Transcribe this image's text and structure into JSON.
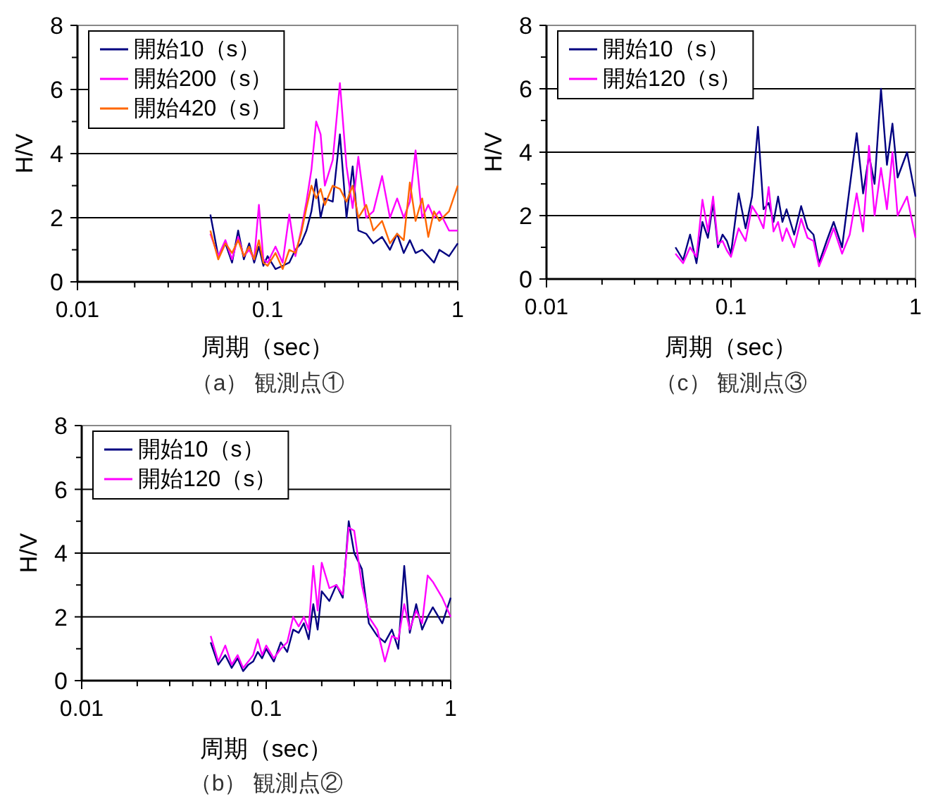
{
  "chart_data": [
    {
      "type": "line",
      "xlabel": "周期（sec）",
      "ylabel": "H/V",
      "annotations": [
        "（a） 観測点①"
      ],
      "log": "x",
      "xlim": [
        0.01,
        1
      ],
      "xticks": [
        0.01,
        0.1,
        1
      ],
      "ylim": [
        0,
        8
      ],
      "yticks": [
        0,
        2,
        4,
        6,
        8
      ],
      "grid": "y",
      "legend": "top left",
      "x": [
        0.05,
        0.055,
        0.06,
        0.065,
        0.07,
        0.075,
        0.08,
        0.085,
        0.09,
        0.095,
        0.1,
        0.11,
        0.12,
        0.13,
        0.14,
        0.15,
        0.16,
        0.17,
        0.18,
        0.19,
        0.2,
        0.22,
        0.24,
        0.26,
        0.28,
        0.3,
        0.33,
        0.36,
        0.4,
        0.44,
        0.48,
        0.52,
        0.56,
        0.6,
        0.65,
        0.7,
        0.75,
        0.8,
        0.9,
        1.0
      ],
      "series": [
        {
          "name": "開始10（s）",
          "color": "#000080",
          "values": [
            2.1,
            0.8,
            1.2,
            0.6,
            1.6,
            0.7,
            1.2,
            0.6,
            1.1,
            0.5,
            0.8,
            0.4,
            0.5,
            0.6,
            1.0,
            1.2,
            1.6,
            2.2,
            3.2,
            2.0,
            2.6,
            2.5,
            4.6,
            2.0,
            3.6,
            1.6,
            1.5,
            1.2,
            1.4,
            1.0,
            1.5,
            0.9,
            1.3,
            0.9,
            1.0,
            0.8,
            0.6,
            1.0,
            0.8,
            1.2
          ]
        },
        {
          "name": "開始200（s）",
          "color": "#ff00ff",
          "values": [
            1.5,
            0.8,
            1.3,
            0.7,
            1.4,
            0.8,
            1.0,
            0.7,
            2.4,
            0.7,
            0.6,
            1.1,
            0.6,
            2.1,
            0.8,
            1.6,
            2.5,
            3.5,
            5.0,
            4.6,
            3.0,
            3.8,
            6.2,
            3.6,
            2.3,
            3.9,
            2.0,
            2.2,
            3.3,
            2.0,
            2.6,
            2.0,
            2.5,
            4.1,
            2.0,
            2.4,
            2.0,
            2.2,
            1.6,
            1.6
          ]
        },
        {
          "name": "開始420（s）",
          "color": "#ff6600",
          "values": [
            1.6,
            0.7,
            1.2,
            0.9,
            1.3,
            0.8,
            1.1,
            0.7,
            1.3,
            0.6,
            0.5,
            0.9,
            0.4,
            1.0,
            0.9,
            1.5,
            2.3,
            3.0,
            2.6,
            2.9,
            2.4,
            3.0,
            2.9,
            2.5,
            3.0,
            2.0,
            2.4,
            1.6,
            1.9,
            1.2,
            1.5,
            1.3,
            3.1,
            1.9,
            2.6,
            1.4,
            2.2,
            1.9,
            2.2,
            3.0
          ]
        }
      ]
    },
    {
      "type": "line",
      "xlabel": "周期（sec）",
      "ylabel": "H/V",
      "annotations": [
        "（c） 観測点③"
      ],
      "log": "x",
      "xlim": [
        0.01,
        1
      ],
      "xticks": [
        0.01,
        0.1,
        1
      ],
      "ylim": [
        0,
        8
      ],
      "yticks": [
        0,
        2,
        4,
        6,
        8
      ],
      "grid": "y",
      "legend": "top left",
      "x": [
        0.05,
        0.055,
        0.06,
        0.065,
        0.07,
        0.075,
        0.08,
        0.085,
        0.09,
        0.095,
        0.1,
        0.11,
        0.12,
        0.13,
        0.14,
        0.15,
        0.16,
        0.17,
        0.18,
        0.19,
        0.2,
        0.22,
        0.24,
        0.26,
        0.28,
        0.3,
        0.33,
        0.36,
        0.4,
        0.44,
        0.48,
        0.52,
        0.56,
        0.6,
        0.65,
        0.7,
        0.75,
        0.8,
        0.9,
        1.0
      ],
      "series": [
        {
          "name": "開始10（s）",
          "color": "#000080",
          "values": [
            1.0,
            0.6,
            1.4,
            0.5,
            1.8,
            1.3,
            2.4,
            1.0,
            1.4,
            1.2,
            0.8,
            2.7,
            1.6,
            2.6,
            4.8,
            2.2,
            2.4,
            1.8,
            2.6,
            1.8,
            2.2,
            1.4,
            2.3,
            1.6,
            1.4,
            0.5,
            1.2,
            1.8,
            1.0,
            2.9,
            4.6,
            2.7,
            3.9,
            3.0,
            6.0,
            3.6,
            4.9,
            3.2,
            4.0,
            2.6
          ]
        },
        {
          "name": "開始120（s）",
          "color": "#ff00ff",
          "values": [
            0.8,
            0.5,
            1.0,
            0.7,
            2.5,
            1.5,
            2.6,
            1.1,
            1.2,
            0.9,
            0.7,
            1.6,
            1.2,
            2.3,
            2.0,
            1.6,
            2.9,
            1.5,
            1.8,
            1.2,
            1.6,
            1.0,
            1.9,
            1.3,
            1.2,
            0.4,
            1.0,
            1.6,
            0.8,
            1.4,
            2.7,
            1.5,
            4.2,
            2.0,
            3.5,
            2.2,
            4.0,
            2.0,
            2.6,
            1.3
          ]
        }
      ]
    },
    {
      "type": "line",
      "xlabel": "周期（sec）",
      "ylabel": "H/V",
      "annotations": [
        "（b） 観測点②"
      ],
      "log": "x",
      "xlim": [
        0.01,
        1
      ],
      "xticks": [
        0.01,
        0.1,
        1
      ],
      "ylim": [
        0,
        8
      ],
      "yticks": [
        0,
        2,
        4,
        6,
        8
      ],
      "grid": "y",
      "legend": "top left",
      "x": [
        0.05,
        0.055,
        0.06,
        0.065,
        0.07,
        0.075,
        0.08,
        0.085,
        0.09,
        0.095,
        0.1,
        0.11,
        0.12,
        0.13,
        0.14,
        0.15,
        0.16,
        0.17,
        0.18,
        0.19,
        0.2,
        0.22,
        0.24,
        0.26,
        0.28,
        0.3,
        0.33,
        0.36,
        0.4,
        0.44,
        0.48,
        0.52,
        0.56,
        0.6,
        0.65,
        0.7,
        0.75,
        0.8,
        0.9,
        1.0
      ],
      "series": [
        {
          "name": "開始10（s）",
          "color": "#000080",
          "values": [
            1.2,
            0.5,
            0.8,
            0.4,
            0.7,
            0.3,
            0.5,
            0.6,
            0.9,
            0.7,
            1.0,
            0.6,
            1.2,
            0.9,
            1.6,
            1.5,
            1.8,
            1.3,
            2.4,
            1.6,
            2.8,
            2.5,
            3.0,
            2.6,
            5.0,
            4.0,
            3.5,
            1.8,
            1.4,
            1.2,
            1.6,
            1.0,
            3.6,
            1.5,
            2.4,
            1.6,
            2.0,
            2.3,
            1.8,
            2.6
          ]
        },
        {
          "name": "開始120（s）",
          "color": "#ff00ff",
          "values": [
            1.4,
            0.6,
            1.1,
            0.5,
            0.8,
            0.4,
            0.6,
            0.8,
            1.3,
            0.8,
            1.1,
            0.7,
            1.0,
            1.2,
            2.0,
            1.7,
            2.0,
            1.6,
            3.6,
            2.2,
            3.7,
            2.9,
            3.0,
            2.7,
            4.8,
            4.7,
            3.0,
            2.0,
            1.6,
            0.6,
            1.4,
            1.3,
            2.4,
            1.6,
            2.2,
            1.8,
            3.3,
            3.1,
            2.6,
            2.0
          ]
        }
      ]
    }
  ]
}
